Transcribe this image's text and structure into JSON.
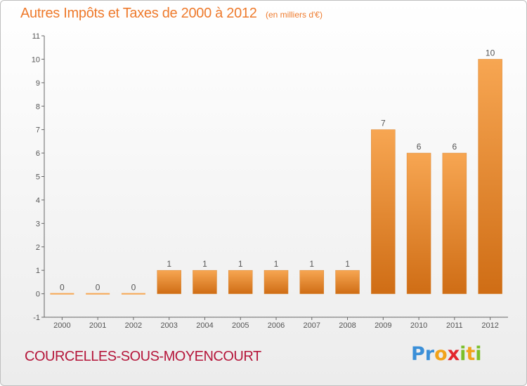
{
  "header": {
    "title": "Autres Impôts et Taxes de 2000 à 2012",
    "unit_note": "(en milliers d'€)"
  },
  "commune_name": "COURCELLES-SOUS-MOYENCOURT",
  "brand": {
    "name": "Proxiti",
    "letters": [
      {
        "char": "P",
        "color": "#3a8fd8"
      },
      {
        "char": "r",
        "color": "#3a8fd8"
      },
      {
        "char": "o",
        "color": "#f1a31c"
      },
      {
        "char": "x",
        "color": "#e3262d"
      },
      {
        "char": "i",
        "color": "#7bbf2a"
      },
      {
        "char": "t",
        "color": "#f1a31c"
      },
      {
        "char": "i",
        "color": "#7bbf2a"
      }
    ]
  },
  "colors": {
    "bar_light": "#f7a652",
    "bar_dark": "#cf6d15",
    "title": "#ee7a2c",
    "commune": "#b5163a"
  },
  "chart_data": {
    "type": "bar",
    "title": "Autres Impôts et Taxes de 2000 à 2012",
    "subtitle": "(en milliers d'€)",
    "xlabel": "",
    "ylabel": "",
    "categories": [
      "2000",
      "2001",
      "2002",
      "2003",
      "2004",
      "2005",
      "2006",
      "2007",
      "2008",
      "2009",
      "2010",
      "2011",
      "2012"
    ],
    "values": [
      0,
      0,
      0,
      1,
      1,
      1,
      1,
      1,
      1,
      7,
      6,
      6,
      10
    ],
    "data_labels": [
      "0",
      "0",
      "0",
      "1",
      "1",
      "1",
      "1",
      "1",
      "1",
      "7",
      "6",
      "6",
      "10"
    ],
    "ylim": [
      -1,
      11
    ],
    "yticks": [
      -1,
      0,
      1,
      2,
      3,
      4,
      5,
      6,
      7,
      8,
      9,
      10,
      11
    ],
    "grid": false,
    "legend": "none"
  }
}
